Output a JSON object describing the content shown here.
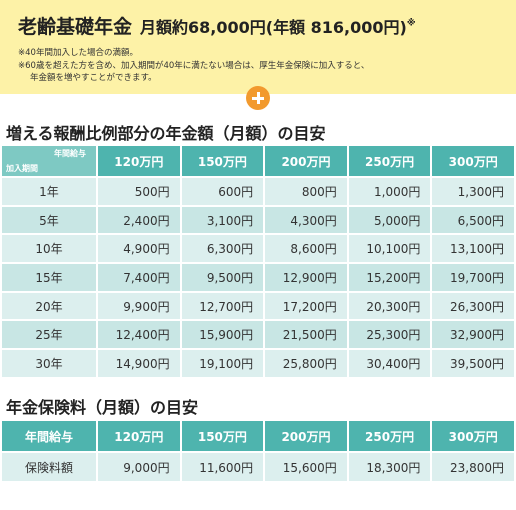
{
  "header": {
    "title": "老齢基礎年金",
    "amount": "月額約68,000円(年額 816,000円)",
    "mark": "※",
    "notes": [
      "※40年間加入した場合の満額。",
      "※60歳を超えた方を含め、加入期間が40年に満たない場合は、厚生年金保険に加入すると、",
      "年金額を増やすことができます。"
    ]
  },
  "table1": {
    "title": "増える報酬比例部分の年金額（月額）の目安",
    "corner_top": "年間給与",
    "corner_bottom": "加入期間",
    "columns": [
      "120万円",
      "150万円",
      "200万円",
      "250万円",
      "300万円"
    ],
    "rows": [
      [
        "1年",
        "500円",
        "600円",
        "800円",
        "1,000円",
        "1,300円"
      ],
      [
        "5年",
        "2,400円",
        "3,100円",
        "4,300円",
        "5,000円",
        "6,500円"
      ],
      [
        "10年",
        "4,900円",
        "6,300円",
        "8,600円",
        "10,100円",
        "13,100円"
      ],
      [
        "15年",
        "7,400円",
        "9,500円",
        "12,900円",
        "15,200円",
        "19,700円"
      ],
      [
        "20年",
        "9,900円",
        "12,700円",
        "17,200円",
        "20,300円",
        "26,300円"
      ],
      [
        "25年",
        "12,400円",
        "15,900円",
        "21,500円",
        "25,300円",
        "32,900円"
      ],
      [
        "30年",
        "14,900円",
        "19,100円",
        "25,800円",
        "30,400円",
        "39,500円"
      ]
    ]
  },
  "table2": {
    "title": "年金保険料（月額）の目安",
    "corner": "年間給与",
    "columns": [
      "120万円",
      "150万円",
      "200万円",
      "250万円",
      "300万円"
    ],
    "row": [
      "保険料額",
      "9,000円",
      "11,600円",
      "15,600円",
      "18,300円",
      "23,800円"
    ]
  }
}
